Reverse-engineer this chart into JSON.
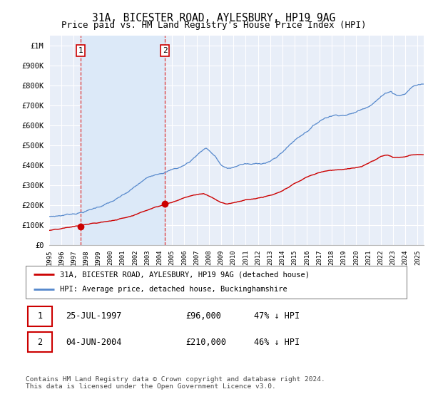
{
  "title1": "31A, BICESTER ROAD, AYLESBURY, HP19 9AG",
  "title2": "Price paid vs. HM Land Registry's House Price Index (HPI)",
  "ylabel_ticks": [
    "£0",
    "£100K",
    "£200K",
    "£300K",
    "£400K",
    "£500K",
    "£600K",
    "£700K",
    "£800K",
    "£900K",
    "£1M"
  ],
  "ytick_values": [
    0,
    100000,
    200000,
    300000,
    400000,
    500000,
    600000,
    700000,
    800000,
    900000,
    1000000
  ],
  "hpi_color": "#5588cc",
  "price_color": "#cc0000",
  "marker_color": "#cc0000",
  "background_color": "#e8eef8",
  "plot_bg": "#e8eef8",
  "shade_color": "#dce6f5",
  "grid_color": "#ffffff",
  "legend_label_price": "31A, BICESTER ROAD, AYLESBURY, HP19 9AG (detached house)",
  "legend_label_hpi": "HPI: Average price, detached house, Buckinghamshire",
  "sale1_date": "25-JUL-1997",
  "sale1_price": 96000,
  "sale1_year": 1997.54,
  "sale1_label": "1",
  "sale1_pct": "47% ↓ HPI",
  "sale2_date": "04-JUN-2004",
  "sale2_price": 210000,
  "sale2_year": 2004.42,
  "sale2_label": "2",
  "sale2_pct": "46% ↓ HPI",
  "footer": "Contains HM Land Registry data © Crown copyright and database right 2024.\nThis data is licensed under the Open Government Licence v3.0.",
  "xmin": 1995.0,
  "xmax": 2025.5,
  "ymin": 0,
  "ymax": 1050000
}
